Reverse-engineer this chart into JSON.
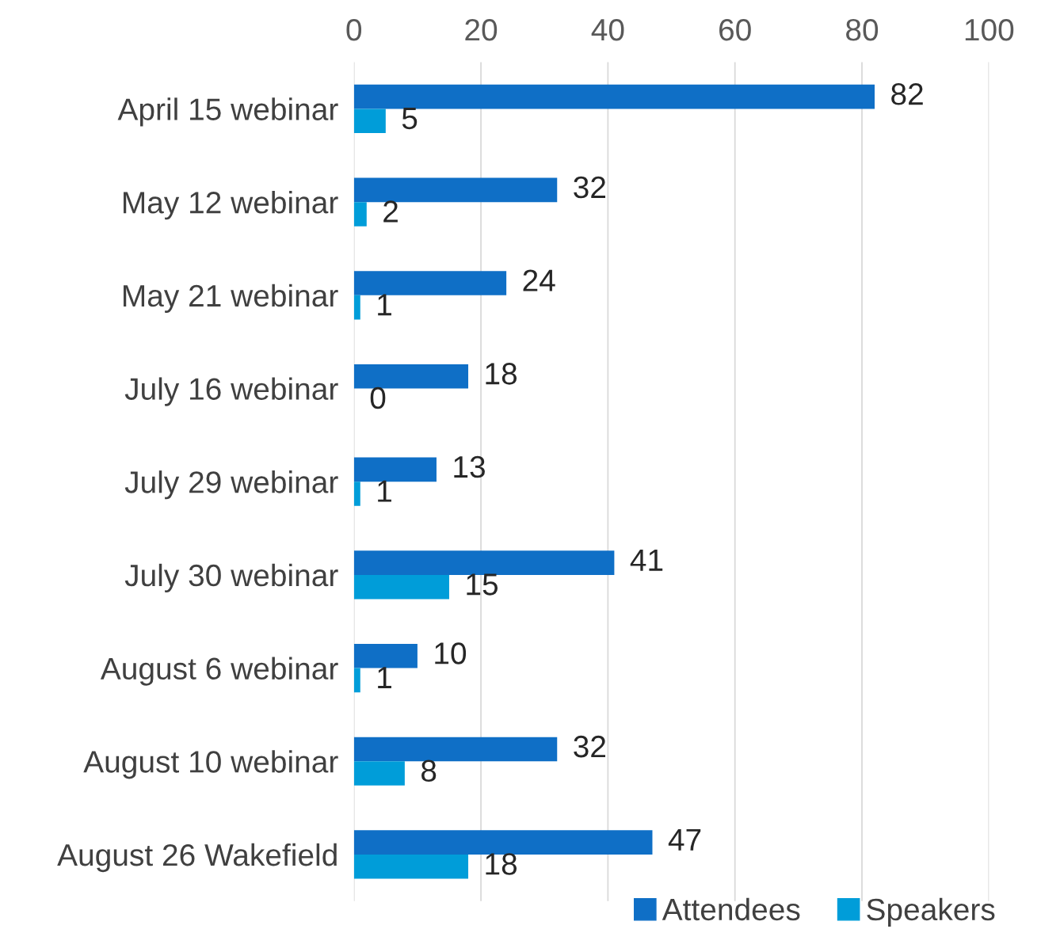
{
  "chart_data": {
    "type": "bar",
    "orientation": "horizontal",
    "categories": [
      "April 15 webinar",
      "May 12 webinar",
      "May 21 webinar",
      "July 16 webinar",
      "July 29 webinar",
      "July 30 webinar",
      "August 6 webinar",
      "August 10 webinar",
      "August 26 Wakefield"
    ],
    "series": [
      {
        "name": "Attendees",
        "color": "#0f6fc6",
        "values": [
          82,
          32,
          24,
          18,
          13,
          41,
          10,
          32,
          47
        ]
      },
      {
        "name": "Speakers",
        "color": "#009dd9",
        "values": [
          5,
          2,
          1,
          0,
          1,
          15,
          1,
          8,
          18
        ]
      }
    ],
    "xlim": [
      0,
      100
    ],
    "xticks": [
      0,
      20,
      40,
      60,
      80,
      100
    ],
    "grid": "x",
    "legend": "bottom right",
    "data_labels": true
  }
}
